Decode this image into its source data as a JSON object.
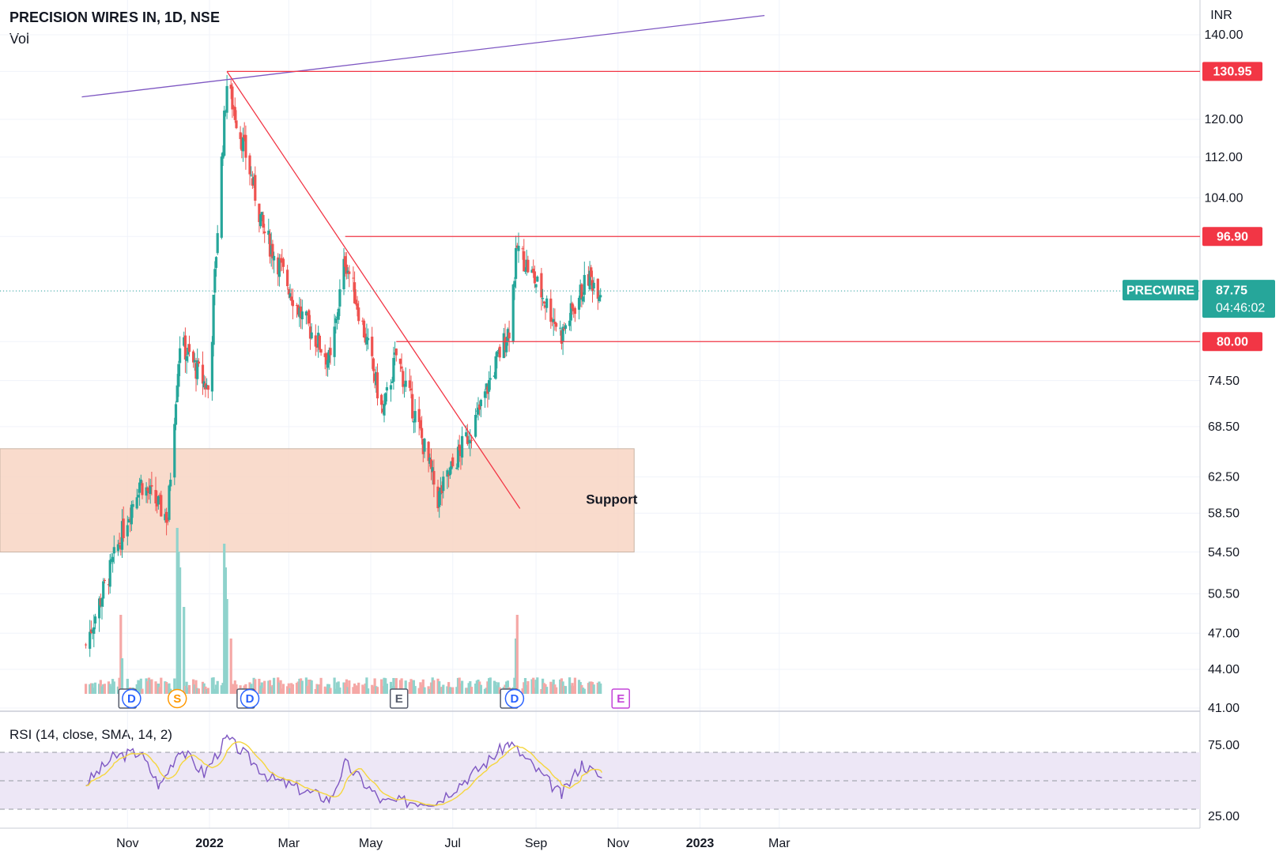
{
  "header": {
    "title": "PRECISION WIRES IN, 1D, NSE",
    "volume_label": "Vol",
    "currency": "INR"
  },
  "colors": {
    "up": "#26a69a",
    "down": "#ef5350",
    "vol_up": "#8fd3cc",
    "vol_down": "#f5a8a6",
    "level_line": "#f23645",
    "trend_top": "#7e57c2",
    "support_zone": "#f8d5c3",
    "rsi_line": "#7e57c2",
    "rsi_sma": "#f5d63d",
    "rsi_band": "#ede7f6",
    "last_price_badge": "#26a69a"
  },
  "chart_data": {
    "type": "candlestick",
    "symbol": "PRECWIRE",
    "price_axis": {
      "scale": "log",
      "range": [
        41,
        145
      ],
      "ticks": [
        "140.00",
        "130.95",
        "120.00",
        "112.00",
        "104.00",
        "96.90",
        "87.75",
        "80.00",
        "74.50",
        "68.50",
        "62.50",
        "58.50",
        "54.50",
        "50.50",
        "47.00",
        "44.00",
        "41.00"
      ]
    },
    "time_axis": {
      "labels": [
        "Nov",
        "2022",
        "Mar",
        "May",
        "Jul",
        "Sep",
        "Nov",
        "2023",
        "Mar"
      ],
      "bold": [
        "2022",
        "2023"
      ]
    },
    "price_levels": [
      {
        "label": "130.95",
        "value": 130.95
      },
      {
        "label": "96.90",
        "value": 96.9
      },
      {
        "label": "80.00",
        "value": 80.0
      }
    ],
    "last_price": {
      "symbol": "PRECWIRE",
      "value": "87.75",
      "countdown": "04:46:02"
    },
    "support_zone": {
      "label": "Support",
      "from": 54.5,
      "to": 65.8
    },
    "trendlines": [
      {
        "name": "rising-resistance",
        "from": [
          "2021-09-28",
          125.0
        ],
        "to": [
          "2023-02-18",
          145.0
        ]
      },
      {
        "name": "falling-trendline",
        "from": [
          "2022-01-14",
          130.95
        ],
        "to": [
          "2022-08-20",
          59.0
        ]
      }
    ],
    "key_closes": [
      {
        "date": "2021-10-01",
        "close": 46.0
      },
      {
        "date": "2021-10-20",
        "close": 53.0
      },
      {
        "date": "2021-11-10",
        "close": 62.0
      },
      {
        "date": "2021-12-01",
        "close": 58.0
      },
      {
        "date": "2021-12-10",
        "close": 80.0
      },
      {
        "date": "2022-01-01",
        "close": 73.0
      },
      {
        "date": "2022-01-14",
        "close": 128.0
      },
      {
        "date": "2022-02-10",
        "close": 98.0
      },
      {
        "date": "2022-03-10",
        "close": 84.0
      },
      {
        "date": "2022-04-01",
        "close": 77.0
      },
      {
        "date": "2022-04-12",
        "close": 93.0
      },
      {
        "date": "2022-05-10",
        "close": 70.0
      },
      {
        "date": "2022-05-20",
        "close": 78.0
      },
      {
        "date": "2022-06-20",
        "close": 60.0
      },
      {
        "date": "2022-07-20",
        "close": 70.0
      },
      {
        "date": "2022-08-12",
        "close": 82.0
      },
      {
        "date": "2022-08-18",
        "close": 95.0
      },
      {
        "date": "2022-09-20",
        "close": 81.0
      },
      {
        "date": "2022-10-10",
        "close": 90.0
      },
      {
        "date": "2022-10-20",
        "close": 87.75
      }
    ],
    "events": [
      {
        "type": "E",
        "date": "2021-11-01"
      },
      {
        "type": "D",
        "date": "2021-11-04"
      },
      {
        "type": "S",
        "date": "2021-12-08"
      },
      {
        "type": "E",
        "date": "2022-01-28"
      },
      {
        "type": "D",
        "date": "2022-01-31"
      },
      {
        "type": "E",
        "date": "2022-05-22"
      },
      {
        "type": "E",
        "date": "2022-08-12"
      },
      {
        "type": "D",
        "date": "2022-08-16"
      },
      {
        "type": "E",
        "date": "2022-11-03",
        "future": true
      }
    ],
    "rsi": {
      "label": "RSI (14, close, SMA, 14, 2)",
      "ticks": [
        "75.00",
        "25.00"
      ],
      "band": [
        30,
        70
      ],
      "midline": 50,
      "key_values": [
        {
          "date": "2021-10-01",
          "rsi": 48
        },
        {
          "date": "2021-10-22",
          "rsi": 67
        },
        {
          "date": "2021-11-10",
          "rsi": 70
        },
        {
          "date": "2021-11-25",
          "rsi": 46
        },
        {
          "date": "2021-12-10",
          "rsi": 73
        },
        {
          "date": "2021-12-28",
          "rsi": 55
        },
        {
          "date": "2022-01-14",
          "rsi": 80
        },
        {
          "date": "2022-02-15",
          "rsi": 52
        },
        {
          "date": "2022-03-15",
          "rsi": 42
        },
        {
          "date": "2022-04-01",
          "rsi": 37
        },
        {
          "date": "2022-04-12",
          "rsi": 62
        },
        {
          "date": "2022-05-10",
          "rsi": 35
        },
        {
          "date": "2022-06-20",
          "rsi": 36
        },
        {
          "date": "2022-07-20",
          "rsi": 58
        },
        {
          "date": "2022-08-12",
          "rsi": 77
        },
        {
          "date": "2022-09-20",
          "rsi": 40
        },
        {
          "date": "2022-10-05",
          "rsi": 62
        },
        {
          "date": "2022-10-20",
          "rsi": 52
        }
      ]
    }
  }
}
